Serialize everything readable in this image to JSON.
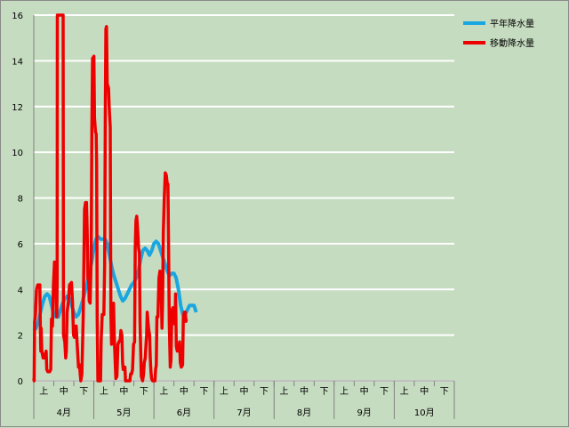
{
  "chart_data": {
    "type": "line",
    "ylim": [
      0,
      16
    ],
    "yticks": [
      "0",
      "2",
      "4",
      "6",
      "8",
      "10",
      "12",
      "14",
      "16"
    ],
    "decade_labels": [
      "上",
      "中",
      "下"
    ],
    "month_labels": [
      "4月",
      "5月",
      "6月",
      "7月",
      "8月",
      "9月",
      "10月"
    ],
    "colors": {
      "background": "#c6dcc0",
      "grid": "#ffffff",
      "normal": "#19a7e1",
      "moving": "#ee0000"
    },
    "series": [
      {
        "name": "平年降水量",
        "color": "#19a7e1",
        "points": [
          [
            0,
            2.2
          ],
          [
            0.33,
            2.3
          ],
          [
            0.67,
            2.6
          ],
          [
            1,
            3.0
          ],
          [
            1.33,
            3.4
          ],
          [
            1.67,
            3.7
          ],
          [
            2,
            3.8
          ],
          [
            2.33,
            3.7
          ],
          [
            2.67,
            3.3
          ],
          [
            3,
            2.9
          ],
          [
            3.33,
            2.8
          ],
          [
            3.67,
            2.8
          ],
          [
            4,
            3.1
          ],
          [
            4.33,
            3.4
          ],
          [
            4.67,
            3.6
          ],
          [
            5,
            3.7
          ],
          [
            5.33,
            3.6
          ],
          [
            5.67,
            3.3
          ],
          [
            6,
            3.0
          ],
          [
            6.33,
            2.8
          ],
          [
            6.67,
            2.9
          ],
          [
            7,
            3.2
          ],
          [
            7.33,
            3.5
          ],
          [
            7.67,
            3.9
          ],
          [
            8,
            4.3
          ],
          [
            8.33,
            4.7
          ],
          [
            8.67,
            5.2
          ],
          [
            9,
            5.8
          ],
          [
            9.33,
            6.2
          ],
          [
            9.67,
            6.3
          ],
          [
            10,
            6.2
          ],
          [
            10.33,
            6.2
          ],
          [
            10.67,
            6.2
          ],
          [
            11,
            6.0
          ],
          [
            11.33,
            5.5
          ],
          [
            11.67,
            5.0
          ],
          [
            12,
            4.6
          ],
          [
            12.33,
            4.3
          ],
          [
            12.67,
            4.0
          ],
          [
            13,
            3.7
          ],
          [
            13.33,
            3.5
          ],
          [
            13.67,
            3.6
          ],
          [
            14,
            3.8
          ],
          [
            14.33,
            4.0
          ],
          [
            14.67,
            4.2
          ],
          [
            15,
            4.3
          ],
          [
            15.33,
            4.5
          ],
          [
            15.67,
            4.8
          ],
          [
            16,
            5.3
          ],
          [
            16.33,
            5.7
          ],
          [
            16.67,
            5.8
          ],
          [
            17,
            5.7
          ],
          [
            17.33,
            5.5
          ],
          [
            17.67,
            5.7
          ],
          [
            18,
            6.0
          ],
          [
            18.33,
            6.1
          ],
          [
            18.67,
            6.0
          ],
          [
            19,
            5.7
          ],
          [
            19.33,
            5.4
          ],
          [
            19.67,
            5.1
          ],
          [
            20,
            4.8
          ],
          [
            20.33,
            4.6
          ],
          [
            20.67,
            4.7
          ],
          [
            21,
            4.7
          ],
          [
            21.33,
            4.5
          ],
          [
            21.67,
            4.0
          ],
          [
            22,
            3.3
          ],
          [
            22.33,
            2.9
          ],
          [
            22.67,
            2.9
          ],
          [
            23,
            3.1
          ],
          [
            23.33,
            3.3
          ],
          [
            23.67,
            3.3
          ],
          [
            24,
            3.3
          ],
          [
            24.33,
            3.0
          ]
        ]
      },
      {
        "name": "移動降水量",
        "color": "#ee0000",
        "points": [
          [
            0,
            0.1
          ],
          [
            0.05,
            0.0
          ],
          [
            0.12,
            2.6
          ],
          [
            0.25,
            2.9
          ],
          [
            0.4,
            4.0
          ],
          [
            0.6,
            4.2
          ],
          [
            0.9,
            4.2
          ],
          [
            1.0,
            2.0
          ],
          [
            1.05,
            1.3
          ],
          [
            1.1,
            2.3
          ],
          [
            1.2,
            1.3
          ],
          [
            1.4,
            1.0
          ],
          [
            1.6,
            1.0
          ],
          [
            1.75,
            1.2
          ],
          [
            1.85,
            1.3
          ],
          [
            1.95,
            0.5
          ],
          [
            2.1,
            0.4
          ],
          [
            2.4,
            0.4
          ],
          [
            2.55,
            0.5
          ],
          [
            2.65,
            2.7
          ],
          [
            2.8,
            2.4
          ],
          [
            2.95,
            4.2
          ],
          [
            3.1,
            5.2
          ],
          [
            3.3,
            5.0
          ],
          [
            3.4,
            3.1
          ],
          [
            3.45,
            2.8
          ],
          [
            3.5,
            4.5
          ],
          [
            3.53,
            17.0
          ],
          [
            4.4,
            17.0
          ],
          [
            4.45,
            2.0
          ],
          [
            4.65,
            1.7
          ],
          [
            4.78,
            1.0
          ],
          [
            4.88,
            1.3
          ],
          [
            5.0,
            3.0
          ],
          [
            5.2,
            3.5
          ],
          [
            5.35,
            4.2
          ],
          [
            5.65,
            4.3
          ],
          [
            5.8,
            3.5
          ],
          [
            5.95,
            2.0
          ],
          [
            6.1,
            1.9
          ],
          [
            6.25,
            2.0
          ],
          [
            6.35,
            2.4
          ],
          [
            6.5,
            1.6
          ],
          [
            6.7,
            0.6
          ],
          [
            6.85,
            0.7
          ],
          [
            6.95,
            0.3
          ],
          [
            7.05,
            0.0
          ],
          [
            7.2,
            0.3
          ],
          [
            7.4,
            2.8
          ],
          [
            7.6,
            7.5
          ],
          [
            7.75,
            7.8
          ],
          [
            7.9,
            7.8
          ],
          [
            8.0,
            6.5
          ],
          [
            8.1,
            4.5
          ],
          [
            8.25,
            4.3
          ],
          [
            8.3,
            3.5
          ],
          [
            8.45,
            3.4
          ],
          [
            8.6,
            5.5
          ],
          [
            8.7,
            11.0
          ],
          [
            8.8,
            14.1
          ],
          [
            9.0,
            14.2
          ],
          [
            9.1,
            11.5
          ],
          [
            9.25,
            10.9
          ],
          [
            9.35,
            10.8
          ],
          [
            9.42,
            9.5
          ],
          [
            9.5,
            2.8
          ],
          [
            9.6,
            0.0
          ],
          [
            10.0,
            0.0
          ],
          [
            10.1,
            1.8
          ],
          [
            10.25,
            2.9
          ],
          [
            10.5,
            2.9
          ],
          [
            10.62,
            5.0
          ],
          [
            10.72,
            12.0
          ],
          [
            10.8,
            15.4
          ],
          [
            10.9,
            15.5
          ],
          [
            11.0,
            13.0
          ],
          [
            11.2,
            12.8
          ],
          [
            11.3,
            12.0
          ],
          [
            11.45,
            11.1
          ],
          [
            11.55,
            3.0
          ],
          [
            11.65,
            1.6
          ],
          [
            11.75,
            3.3
          ],
          [
            11.95,
            3.4
          ],
          [
            12.05,
            2.0
          ],
          [
            12.15,
            1.2
          ],
          [
            12.3,
            0.1
          ],
          [
            12.45,
            0.2
          ],
          [
            12.6,
            1.6
          ],
          [
            12.75,
            1.7
          ],
          [
            12.95,
            1.8
          ],
          [
            13.05,
            2.2
          ],
          [
            13.2,
            2.0
          ],
          [
            13.3,
            0.8
          ],
          [
            13.4,
            0.5
          ],
          [
            13.65,
            0.6
          ],
          [
            13.75,
            0.0
          ],
          [
            14.4,
            0.0
          ],
          [
            14.5,
            0.3
          ],
          [
            14.65,
            0.3
          ],
          [
            14.8,
            0.5
          ],
          [
            14.95,
            1.6
          ],
          [
            15.1,
            1.7
          ],
          [
            15.2,
            5.8
          ],
          [
            15.3,
            7.0
          ],
          [
            15.42,
            7.2
          ],
          [
            15.55,
            6.7
          ],
          [
            15.7,
            5.8
          ],
          [
            15.82,
            5.6
          ],
          [
            15.92,
            2.6
          ],
          [
            16.1,
            0.2
          ],
          [
            16.3,
            0.0
          ],
          [
            16.45,
            0.3
          ],
          [
            16.55,
            0.8
          ],
          [
            16.7,
            1.0
          ],
          [
            16.8,
            1.5
          ],
          [
            16.9,
            2.0
          ],
          [
            17.0,
            3.0
          ],
          [
            17.1,
            2.6
          ],
          [
            17.2,
            2.3
          ],
          [
            17.35,
            2.0
          ],
          [
            17.45,
            1.0
          ],
          [
            17.55,
            0.4
          ],
          [
            17.65,
            0.1
          ],
          [
            17.8,
            0.0
          ],
          [
            18.15,
            0.0
          ],
          [
            18.25,
            0.5
          ],
          [
            18.35,
            0.7
          ],
          [
            18.45,
            2.8
          ],
          [
            18.6,
            2.8
          ],
          [
            18.75,
            4.5
          ],
          [
            18.9,
            4.8
          ],
          [
            19.0,
            4.2
          ],
          [
            19.1,
            3.9
          ],
          [
            19.2,
            2.3
          ],
          [
            19.3,
            3.5
          ],
          [
            19.4,
            6.5
          ],
          [
            19.55,
            8.0
          ],
          [
            19.7,
            9.1
          ],
          [
            19.85,
            9.0
          ],
          [
            20.0,
            8.6
          ],
          [
            20.1,
            8.6
          ],
          [
            20.2,
            5.5
          ],
          [
            20.3,
            2.5
          ],
          [
            20.45,
            0.6
          ],
          [
            20.55,
            0.9
          ],
          [
            20.7,
            3.1
          ],
          [
            20.85,
            3.2
          ],
          [
            21.0,
            2.5
          ],
          [
            21.15,
            2.5
          ],
          [
            21.25,
            3.8
          ],
          [
            21.35,
            1.5
          ],
          [
            21.5,
            1.3
          ],
          [
            21.75,
            1.4
          ],
          [
            21.85,
            1.7
          ],
          [
            21.95,
            0.8
          ],
          [
            22.1,
            0.6
          ],
          [
            22.3,
            0.7
          ],
          [
            22.4,
            2.8
          ],
          [
            22.55,
            3.0
          ],
          [
            22.7,
            3.0
          ],
          [
            22.8,
            2.6
          ],
          [
            22.85,
            2.7
          ]
        ]
      }
    ]
  }
}
